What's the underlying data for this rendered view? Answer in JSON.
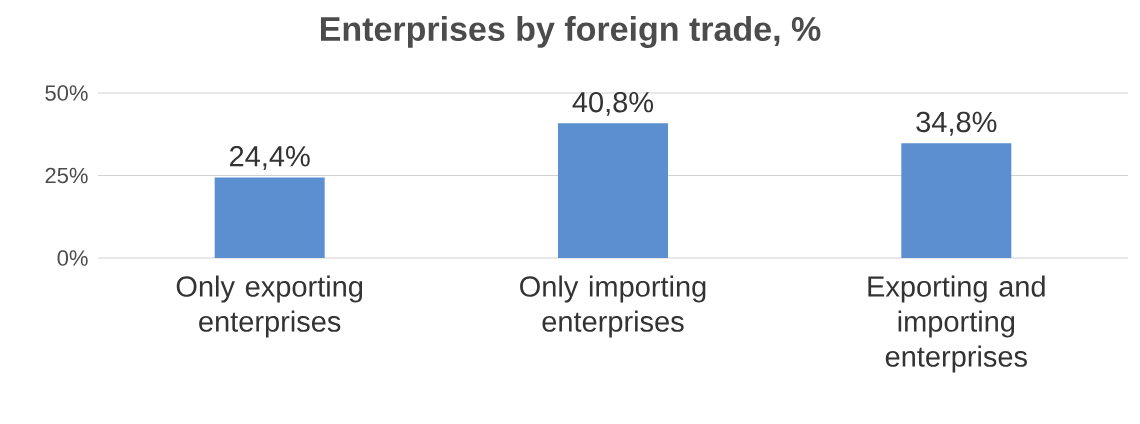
{
  "chart_data": {
    "type": "bar",
    "title": "Enterprises by foreign trade, %",
    "categories": [
      "Only exporting enterprises",
      "Only importing enterprises",
      "Exporting and importing enterprises"
    ],
    "values": [
      24.4,
      40.8,
      34.8
    ],
    "value_labels": [
      "24,4%",
      "40,8%",
      "34,8%"
    ],
    "color": "#5b8fd0",
    "ylim": [
      0,
      50
    ],
    "yticks": [
      {
        "value": 0,
        "label": "0%"
      },
      {
        "value": 25,
        "label": "25%"
      },
      {
        "value": 50,
        "label": "50%"
      }
    ],
    "grid": "y"
  }
}
